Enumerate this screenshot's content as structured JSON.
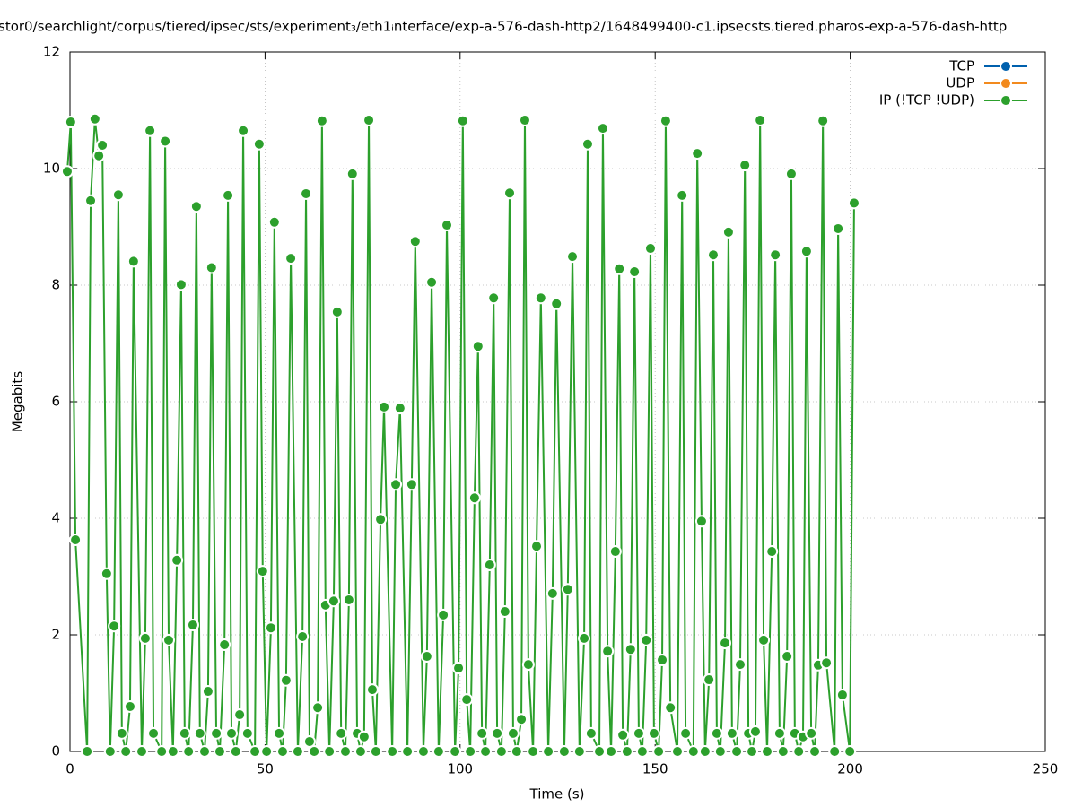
{
  "chart_data": {
    "type": "line",
    "title": "stor0/searchlight/corpus/tiered/ipsec/sts/experiment₃/eth1ᵢnterface/exp-a-576-dash-http2/1648499400-c1.ipsecsts.tiered.pharos-exp-a-576-dash-http",
    "x_label": "Time (s)",
    "y_label": "Megabits",
    "xlim": [
      0,
      250
    ],
    "xticks": [
      0,
      50,
      100,
      150,
      200,
      250
    ],
    "ylim": [
      0,
      12
    ],
    "yticks": [
      0,
      2,
      4,
      6,
      8,
      10,
      12
    ],
    "grid": true,
    "legend": "top-right",
    "series": [
      {
        "name": "TCP",
        "color": "#0060ad"
      },
      {
        "name": "UDP",
        "color": "#f28a1e"
      },
      {
        "name": "IP (!TCP  !UDP)",
        "color": "#2ca02c",
        "x": [
          -0.7,
          0.2,
          1.4,
          4.4,
          5.3,
          6.4,
          7.4,
          8.3,
          9.4,
          10.3,
          11.3,
          12.4,
          13.3,
          14.3,
          15.4,
          16.3,
          18.4,
          19.3,
          20.5,
          21.4,
          23.5,
          24.4,
          25.3,
          26.4,
          27.4,
          28.5,
          29.4,
          30.4,
          31.5,
          32.4,
          33.3,
          34.5,
          35.4,
          36.3,
          37.5,
          38.4,
          39.6,
          40.5,
          41.4,
          42.5,
          43.5,
          44.4,
          45.5,
          47.4,
          48.5,
          49.4,
          50.4,
          51.5,
          52.4,
          53.6,
          54.5,
          55.4,
          56.6,
          58.4,
          59.6,
          60.5,
          61.4,
          62.6,
          63.5,
          64.6,
          65.5,
          66.5,
          67.6,
          68.5,
          69.5,
          70.6,
          71.5,
          72.4,
          73.6,
          74.5,
          75.4,
          76.6,
          77.5,
          78.4,
          79.6,
          80.5,
          82.6,
          83.5,
          84.6,
          86.5,
          87.6,
          88.5,
          90.6,
          91.5,
          92.7,
          94.5,
          95.7,
          96.6,
          98.7,
          99.6,
          100.7,
          101.7,
          102.6,
          103.7,
          104.6,
          105.6,
          106.5,
          107.6,
          108.6,
          109.5,
          110.6,
          111.5,
          112.7,
          113.6,
          114.5,
          115.7,
          116.6,
          117.5,
          118.7,
          119.6,
          120.7,
          122.6,
          123.7,
          124.7,
          126.7,
          127.6,
          128.8,
          130.6,
          131.8,
          132.7,
          133.6,
          135.7,
          136.6,
          137.8,
          138.7,
          139.8,
          140.8,
          141.7,
          142.8,
          143.7,
          144.7,
          145.8,
          146.7,
          147.7,
          148.8,
          149.7,
          150.9,
          151.8,
          152.7,
          153.9,
          155.7,
          156.9,
          157.8,
          159.8,
          160.8,
          161.9,
          162.8,
          163.8,
          164.9,
          165.8,
          166.7,
          167.9,
          168.8,
          169.7,
          170.9,
          171.8,
          173.0,
          173.9,
          174.8,
          175.7,
          176.9,
          177.8,
          178.7,
          179.9,
          180.8,
          181.9,
          182.8,
          183.8,
          184.9,
          185.8,
          186.8,
          187.9,
          188.8,
          190.0,
          190.9,
          191.8,
          193.0,
          193.9,
          196.0,
          196.9,
          198.0,
          199.9,
          201.0
        ],
        "values": [
          9.95,
          10.8,
          3.63,
          0,
          9.45,
          10.85,
          10.22,
          10.4,
          3.05,
          0,
          2.15,
          9.55,
          0.31,
          0,
          0.77,
          8.41,
          0,
          1.94,
          10.65,
          0.31,
          0,
          10.47,
          1.91,
          0,
          3.28,
          8.01,
          0.31,
          0,
          2.17,
          9.35,
          0.31,
          0,
          1.03,
          8.3,
          0.31,
          0,
          1.83,
          9.54,
          0.31,
          0,
          0.63,
          10.65,
          0.31,
          0,
          10.42,
          3.09,
          0,
          2.12,
          9.08,
          0.31,
          0,
          1.22,
          8.46,
          0,
          1.97,
          9.57,
          0.17,
          0,
          0.75,
          10.82,
          2.51,
          0,
          2.58,
          7.54,
          0.31,
          0,
          2.6,
          9.91,
          0.31,
          0,
          0.25,
          10.83,
          1.06,
          0,
          3.98,
          5.91,
          0,
          4.58,
          5.89,
          0,
          4.58,
          8.75,
          0,
          1.63,
          8.05,
          0,
          2.34,
          9.03,
          0,
          1.43,
          10.82,
          0.89,
          0,
          4.35,
          6.95,
          0.31,
          0,
          3.2,
          7.78,
          0.31,
          0,
          2.4,
          9.58,
          0.31,
          0,
          0.55,
          10.83,
          1.49,
          0,
          3.52,
          7.78,
          0,
          2.71,
          7.68,
          0,
          2.78,
          8.49,
          0,
          1.94,
          10.42,
          0.31,
          0,
          10.69,
          1.72,
          0,
          3.43,
          8.28,
          0.28,
          0,
          1.75,
          8.23,
          0.31,
          0,
          1.91,
          8.63,
          0.31,
          0,
          1.57,
          10.82,
          0.75,
          0,
          9.54,
          0.31,
          0,
          10.26,
          3.95,
          0,
          1.23,
          8.52,
          0.31,
          0,
          1.86,
          8.91,
          0.31,
          0,
          1.49,
          10.06,
          0.31,
          0,
          0.34,
          10.83,
          1.91,
          0,
          3.43,
          8.52,
          0.31,
          0,
          1.63,
          9.91,
          0.31,
          0,
          0.25,
          8.58,
          0.31,
          0,
          1.48,
          10.82,
          1.52,
          0,
          8.97,
          0.97,
          0,
          9.41
        ]
      }
    ]
  }
}
